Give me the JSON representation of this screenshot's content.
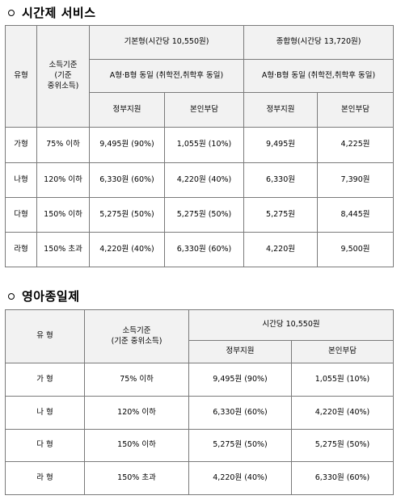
{
  "section1": {
    "title": "시간제 서비스",
    "headers": {
      "type": "유형",
      "income_line1": "소득기준",
      "income_line2": "(기준",
      "income_line3": "중위소득)",
      "basic": "기본형(시간당 10,550원)",
      "combined": "종합형(시간당 13,720원)",
      "ab_basic": "A형·B형 동일 (취학전,취학후 동일)",
      "ab_combined": "A형·B형 동일 (취학전,취학후 동일)",
      "gov1": "정부지원",
      "self1": "본인부담",
      "gov2": "정부지원",
      "self2": "본인부담"
    },
    "rows": [
      {
        "type": "가형",
        "income": "75% 이하",
        "b_gov": "9,495원 (90%)",
        "b_self": "1,055원 (10%)",
        "c_gov": "9,495원",
        "c_self": "4,225원"
      },
      {
        "type": "나형",
        "income": "120% 이하",
        "b_gov": "6,330원 (60%)",
        "b_self": "4,220원 (40%)",
        "c_gov": "6,330원",
        "c_self": "7,390원"
      },
      {
        "type": "다형",
        "income": "150% 이하",
        "b_gov": "5,275원 (50%)",
        "b_self": "5,275원 (50%)",
        "c_gov": "5,275원",
        "c_self": "8,445원"
      },
      {
        "type": "라형",
        "income": "150% 초과",
        "b_gov": "4,220원 (40%)",
        "b_self": "6,330원 (60%)",
        "c_gov": "4,220원",
        "c_self": "9,500원"
      }
    ]
  },
  "section2": {
    "title": "영아종일제",
    "headers": {
      "type": "유 형",
      "income_line1": "소득기준",
      "income_line2": "(기준 중위소득)",
      "hourly": "시간당 10,550원",
      "gov": "정부지원",
      "self": "본인부담"
    },
    "rows": [
      {
        "type": "가 형",
        "income": "75% 이하",
        "gov": "9,495원 (90%)",
        "self": "1,055원 (10%)"
      },
      {
        "type": "나 형",
        "income": "120% 이하",
        "gov": "6,330원 (60%)",
        "self": "4,220원 (40%)"
      },
      {
        "type": "다 형",
        "income": "150% 이하",
        "gov": "5,275원 (50%)",
        "self": "5,275원 (50%)"
      },
      {
        "type": "라 형",
        "income": "150% 초과",
        "gov": "4,220원 (40%)",
        "self": "6,330원 (60%)"
      }
    ]
  }
}
